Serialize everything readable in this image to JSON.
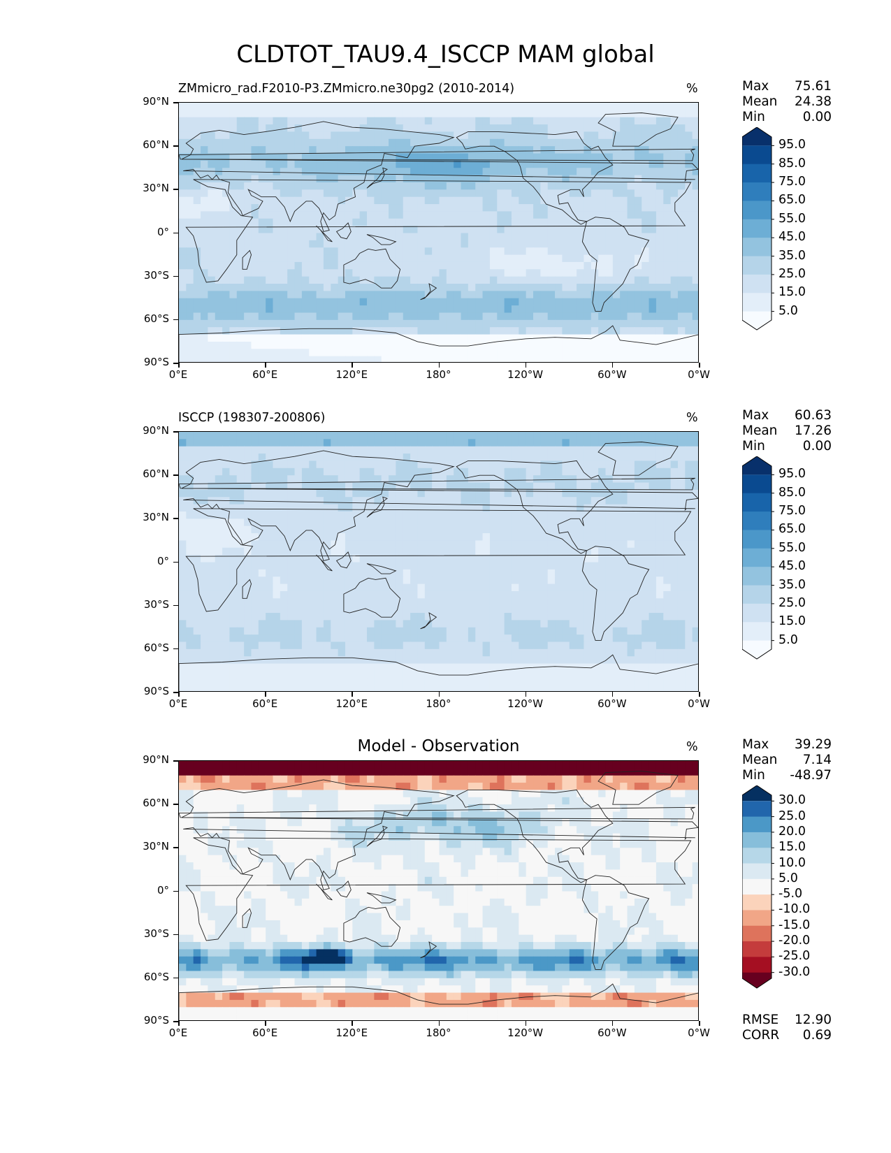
{
  "figure_title": "CLDTOT_TAU9.4_ISCCP MAM global",
  "lat_labels": [
    "90°N",
    "60°N",
    "30°N",
    "0°",
    "30°S",
    "60°S",
    "90°S"
  ],
  "lon_labels": [
    "0°E",
    "60°E",
    "120°E",
    "180°",
    "120°W",
    "60°W",
    "0°W"
  ],
  "panels": [
    {
      "title": "ZMmicro_rad.F2010-P3.ZMmicro.ne30pg2 (2010-2014)",
      "units": "%",
      "stats": {
        "max_label": "Max",
        "max": "75.61",
        "mean_label": "Mean",
        "mean": "24.38",
        "min_label": "Min",
        "min": "0.00"
      },
      "colorbar_ticks": [
        "95.0",
        "85.0",
        "75.0",
        "65.0",
        "55.0",
        "45.0",
        "35.0",
        "25.0",
        "15.0",
        "5.0"
      ]
    },
    {
      "title": "ISCCP (198307-200806)",
      "units": "%",
      "stats": {
        "max_label": "Max",
        "max": "60.63",
        "mean_label": "Mean",
        "mean": "17.26",
        "min_label": "Min",
        "min": "0.00"
      },
      "colorbar_ticks": [
        "95.0",
        "85.0",
        "75.0",
        "65.0",
        "55.0",
        "45.0",
        "35.0",
        "25.0",
        "15.0",
        "5.0"
      ]
    },
    {
      "title": "Model - Observation",
      "units": "%",
      "stats": {
        "max_label": "Max",
        "max": "39.29",
        "mean_label": "Mean",
        "mean": "7.14",
        "min_label": "Min",
        "min": "-48.97"
      },
      "colorbar_ticks": [
        "30.0",
        "25.0",
        "20.0",
        "15.0",
        "10.0",
        "5.0",
        "-5.0",
        "-10.0",
        "-15.0",
        "-20.0",
        "-25.0",
        "-30.0"
      ],
      "metrics": {
        "rmse_label": "RMSE",
        "rmse": "12.90",
        "corr_label": "CORR",
        "corr": "0.69"
      }
    }
  ],
  "colormaps": {
    "blues": [
      "#f7fbff",
      "#e3eef9",
      "#cfe1f2",
      "#b5d4e9",
      "#93c3df",
      "#6daed5",
      "#4b97c9",
      "#2f7ebc",
      "#1864aa",
      "#0a4a90",
      "#08306b"
    ],
    "diverging": [
      "#67001f",
      "#a50f22",
      "#c43c3c",
      "#de735c",
      "#f1a687",
      "#fbd3bb",
      "#f7f7f7",
      "#dbe9f2",
      "#b6d7e8",
      "#87beda",
      "#4b98c7",
      "#2166ac",
      "#053061"
    ]
  }
}
